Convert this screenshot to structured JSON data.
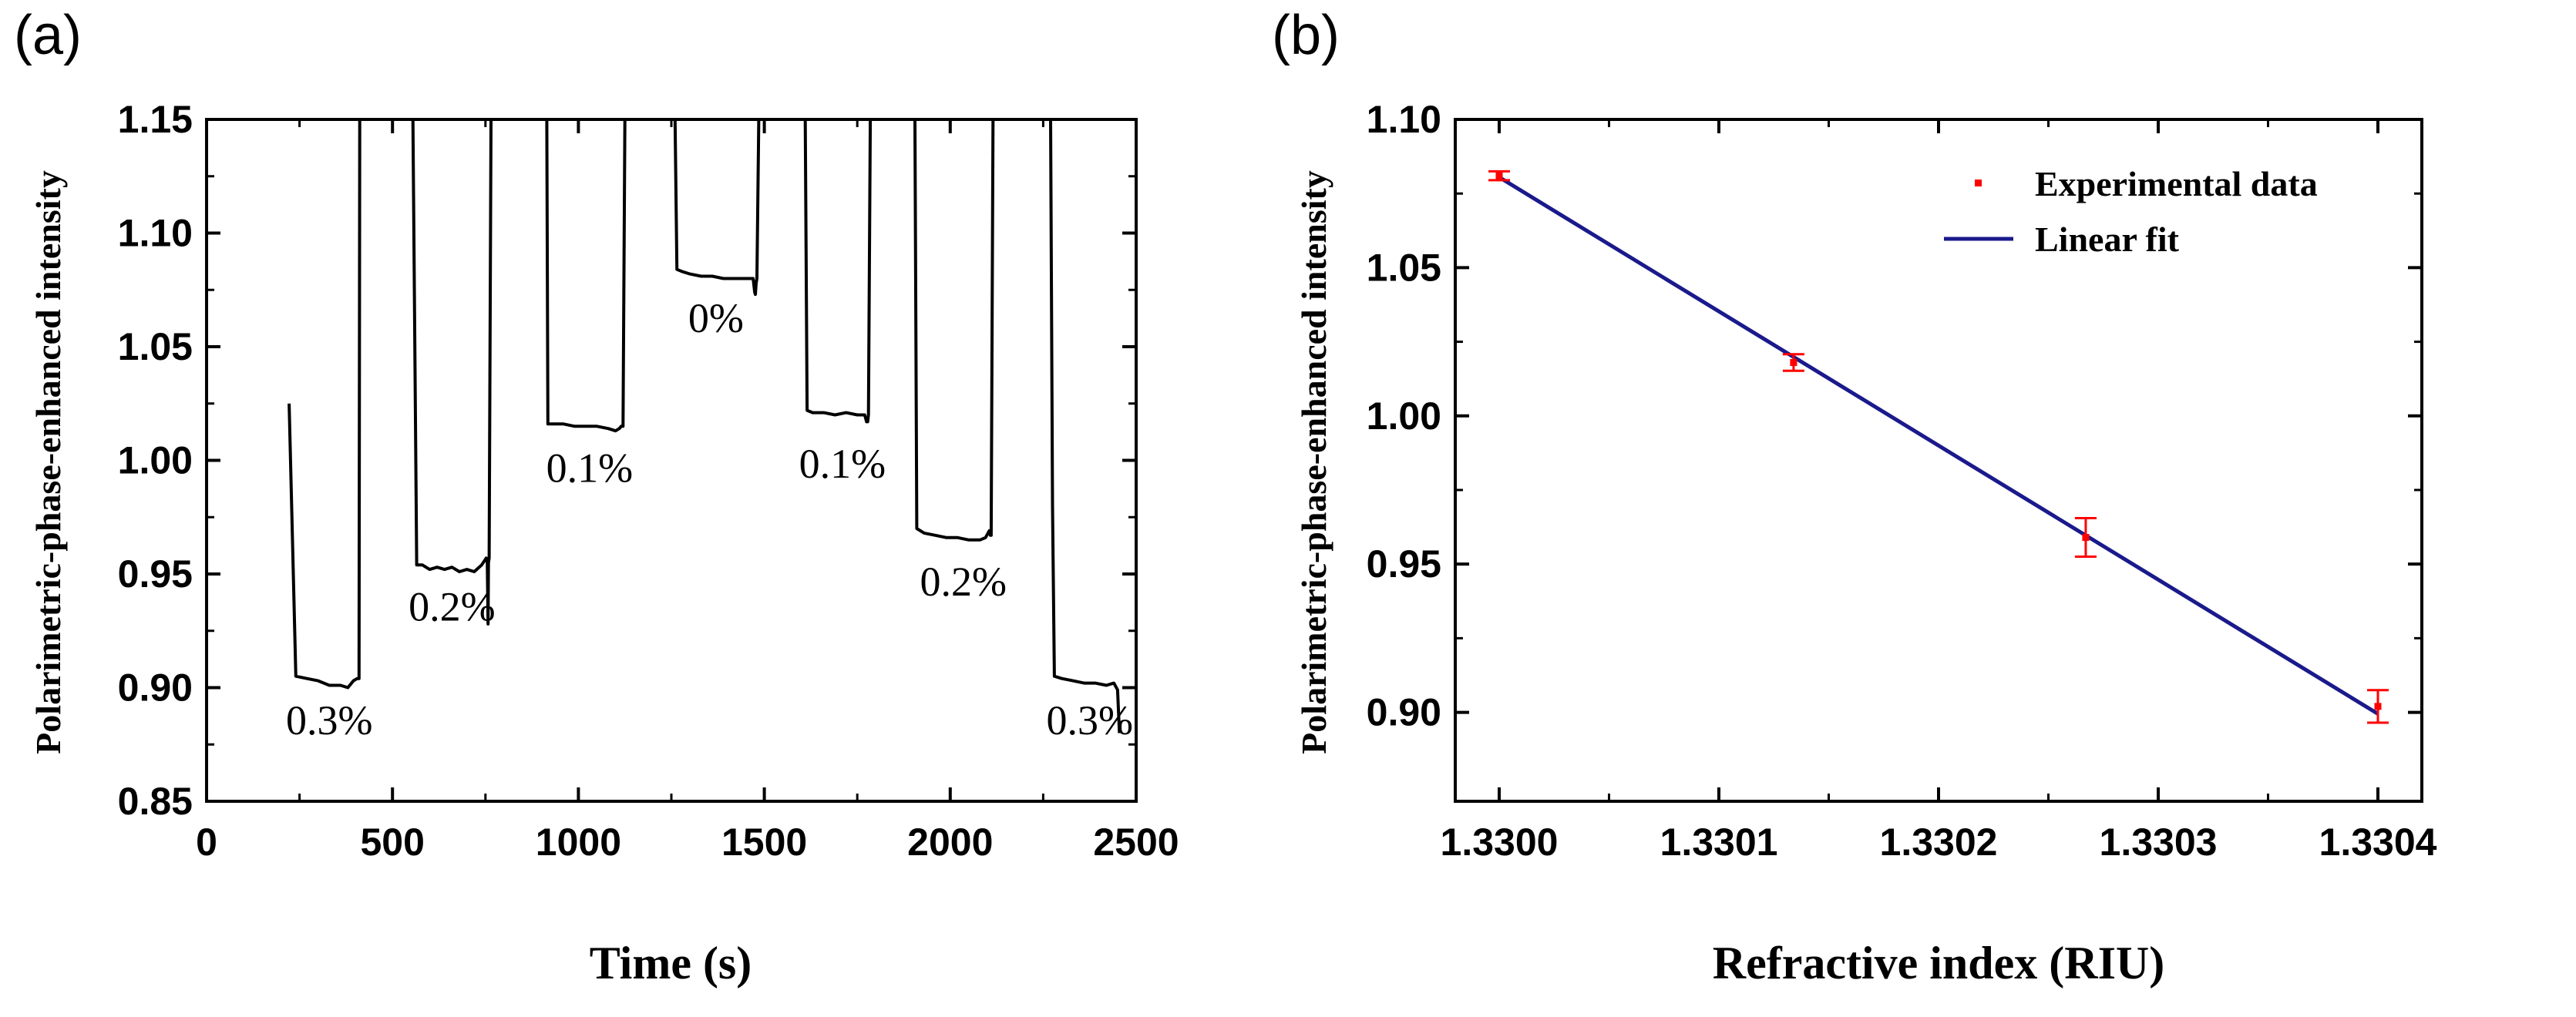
{
  "chart_data": [
    {
      "panel": "(a)",
      "type": "line",
      "xlabel": "Time (s)",
      "ylabel": "Polarimetric-phase-enhanced intensity",
      "xlim": [
        0,
        2500
      ],
      "ylim": [
        0.85,
        1.15
      ],
      "xticks": [
        0,
        500,
        1000,
        1500,
        2000,
        2500
      ],
      "xtick_labels": [
        "0",
        "500",
        "1000",
        "1500",
        "2000",
        "2500"
      ],
      "yticks": [
        0.85,
        0.9,
        0.95,
        1.0,
        1.05,
        1.1,
        1.15
      ],
      "ytick_labels": [
        "0.85",
        "0.90",
        "0.95",
        "1.00",
        "1.05",
        "1.10",
        "1.15"
      ],
      "series": [
        {
          "name": "intensity",
          "color": "#000000",
          "x": [
            222,
            240,
            270,
            300,
            330,
            360,
            380,
            395,
            405,
            410,
            412,
            555,
            565,
            580,
            600,
            620,
            640,
            660,
            680,
            700,
            720,
            740,
            752,
            755,
            757,
            758,
            760,
            765,
            915,
            918,
            930,
            960,
            990,
            1020,
            1050,
            1080,
            1100,
            1110,
            1115,
            1118,
            1120,
            1125,
            1260,
            1265,
            1280,
            1300,
            1330,
            1360,
            1390,
            1420,
            1450,
            1470,
            1472,
            1474,
            1476,
            1478,
            1480,
            1485,
            1610,
            1615,
            1630,
            1660,
            1690,
            1720,
            1750,
            1770,
            1775,
            1778,
            1780,
            1785,
            1905,
            1910,
            1930,
            1960,
            1990,
            2020,
            2050,
            2080,
            2095,
            2105,
            2108,
            2110,
            2115,
            2270,
            2275,
            2280,
            2300,
            2330,
            2360,
            2390,
            2420,
            2440,
            2450,
            2455
          ],
          "y": [
            1.025,
            0.905,
            0.904,
            0.903,
            0.901,
            0.901,
            0.9,
            0.903,
            0.904,
            0.904,
            1.15,
            1.15,
            0.954,
            0.954,
            0.952,
            0.953,
            0.952,
            0.953,
            0.951,
            0.952,
            0.951,
            0.954,
            0.957,
            0.955,
            0.928,
            0.955,
            0.957,
            1.15,
            1.15,
            1.016,
            1.016,
            1.016,
            1.015,
            1.015,
            1.015,
            1.014,
            1.013,
            1.014,
            1.015,
            1.015,
            1.015,
            1.15,
            1.15,
            1.084,
            1.083,
            1.082,
            1.081,
            1.081,
            1.08,
            1.08,
            1.08,
            1.08,
            1.077,
            1.074,
            1.073,
            1.078,
            1.08,
            1.15,
            1.15,
            1.022,
            1.021,
            1.021,
            1.02,
            1.021,
            1.02,
            1.02,
            1.017,
            1.017,
            1.02,
            1.15,
            1.15,
            0.97,
            0.968,
            0.967,
            0.966,
            0.966,
            0.965,
            0.965,
            0.966,
            0.969,
            0.967,
            0.967,
            1.15,
            1.15,
            0.98,
            0.905,
            0.904,
            0.903,
            0.902,
            0.902,
            0.901,
            0.902,
            0.899,
            0.88
          ]
        }
      ],
      "annotations": [
        {
          "text": "0.3%",
          "x": 330,
          "y": 0.893
        },
        {
          "text": "0.2%",
          "x": 660,
          "y": 0.943
        },
        {
          "text": "0.1%",
          "x": 1030,
          "y": 1.004
        },
        {
          "text": "0%",
          "x": 1370,
          "y": 1.07
        },
        {
          "text": "0.1%",
          "x": 1710,
          "y": 1.006
        },
        {
          "text": "0.2%",
          "x": 2035,
          "y": 0.954
        },
        {
          "text": "0.3%",
          "x": 2375,
          "y": 0.893
        }
      ]
    },
    {
      "panel": "(b)",
      "type": "scatter",
      "xlabel": "Refractive index (RIU)",
      "ylabel": "Polarimetric-phase-enhanced intensity",
      "xlim": [
        1.32998,
        1.33042
      ],
      "ylim": [
        0.87,
        1.1
      ],
      "xticks": [
        1.33,
        1.3301,
        1.3302,
        1.3303,
        1.3304
      ],
      "xtick_labels": [
        "1.3300",
        "1.3301",
        "1.3302",
        "1.3303",
        "1.3304"
      ],
      "yticks": [
        0.9,
        0.95,
        1.0,
        1.05,
        1.1
      ],
      "ytick_labels": [
        "0.90",
        "0.95",
        "1.00",
        "1.05",
        "1.10"
      ],
      "series": [
        {
          "name": "Experimental data",
          "type": "scatter",
          "color": "#ff0000",
          "x": [
            1.33,
            1.330134,
            1.330267,
            1.3304
          ],
          "y": [
            1.081,
            1.018,
            0.959,
            0.902
          ],
          "yerr": [
            0.0015,
            0.0028,
            0.0065,
            0.0055
          ]
        },
        {
          "name": "Linear fit",
          "type": "line",
          "color": "#1a1a8c",
          "x": [
            1.33,
            1.3304
          ],
          "y": [
            1.0805,
            0.8995
          ]
        }
      ],
      "legend": {
        "position": "top-right",
        "entries": [
          "Experimental data",
          "Linear fit"
        ]
      }
    }
  ]
}
